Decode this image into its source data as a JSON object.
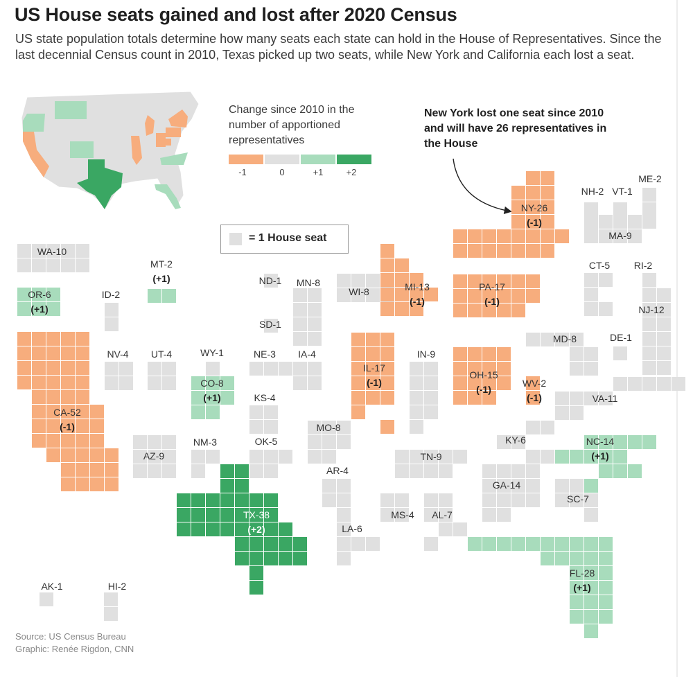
{
  "title": "US House seats gained and lost after 2020 Census",
  "subtitle": "US state population totals determine how many seats each state can hold in the House of Representatives. Since the last decennial Census count in 2010, Texas picked up two seats, while New York and California each lost a seat.",
  "legend": {
    "title": "Change since 2010 in the number of apportioned representatives",
    "items": [
      {
        "label": "-1",
        "color": "#f7ad7d"
      },
      {
        "label": "0",
        "color": "#e0e0e0"
      },
      {
        "label": "+1",
        "color": "#a8dcbc"
      },
      {
        "label": "+2",
        "color": "#3aa763"
      }
    ]
  },
  "key": {
    "label": "= 1 House seat",
    "swatch_color": "#e0e0e0"
  },
  "callout": {
    "text": "New York lost one seat since 2010 and will have 26 representatives in the House"
  },
  "source": {
    "line1": "Source: US Census Bureau",
    "line2": "Graphic: Renée Rigdon, CNN"
  },
  "chart_data": {
    "type": "table",
    "unit": "1 House seat",
    "states": [
      {
        "code": "WA",
        "seats": 10,
        "change": 0
      },
      {
        "code": "OR",
        "seats": 6,
        "change": 1
      },
      {
        "code": "CA",
        "seats": 52,
        "change": -1
      },
      {
        "code": "ID",
        "seats": 2,
        "change": 0
      },
      {
        "code": "NV",
        "seats": 4,
        "change": 0
      },
      {
        "code": "MT",
        "seats": 2,
        "change": 1
      },
      {
        "code": "UT",
        "seats": 4,
        "change": 0
      },
      {
        "code": "AZ",
        "seats": 9,
        "change": 0
      },
      {
        "code": "WY",
        "seats": 1,
        "change": 0
      },
      {
        "code": "CO",
        "seats": 8,
        "change": 1
      },
      {
        "code": "NM",
        "seats": 3,
        "change": 0
      },
      {
        "code": "ND",
        "seats": 1,
        "change": 0
      },
      {
        "code": "SD",
        "seats": 1,
        "change": 0
      },
      {
        "code": "NE",
        "seats": 3,
        "change": 0
      },
      {
        "code": "KS",
        "seats": 4,
        "change": 0
      },
      {
        "code": "OK",
        "seats": 5,
        "change": 0
      },
      {
        "code": "TX",
        "seats": 38,
        "change": 2
      },
      {
        "code": "MN",
        "seats": 8,
        "change": 0
      },
      {
        "code": "IA",
        "seats": 4,
        "change": 0
      },
      {
        "code": "MO",
        "seats": 8,
        "change": 0
      },
      {
        "code": "AR",
        "seats": 4,
        "change": 0
      },
      {
        "code": "LA",
        "seats": 6,
        "change": 0
      },
      {
        "code": "WI",
        "seats": 8,
        "change": 0
      },
      {
        "code": "IL",
        "seats": 17,
        "change": -1
      },
      {
        "code": "MI",
        "seats": 13,
        "change": -1
      },
      {
        "code": "IN",
        "seats": 9,
        "change": 0
      },
      {
        "code": "OH",
        "seats": 15,
        "change": -1
      },
      {
        "code": "KY",
        "seats": 6,
        "change": 0
      },
      {
        "code": "TN",
        "seats": 9,
        "change": 0
      },
      {
        "code": "MS",
        "seats": 4,
        "change": 0
      },
      {
        "code": "AL",
        "seats": 7,
        "change": 0
      },
      {
        "code": "GA",
        "seats": 14,
        "change": 0
      },
      {
        "code": "FL",
        "seats": 28,
        "change": 1
      },
      {
        "code": "SC",
        "seats": 7,
        "change": 0
      },
      {
        "code": "NC",
        "seats": 14,
        "change": 1
      },
      {
        "code": "VA",
        "seats": 11,
        "change": 0
      },
      {
        "code": "WV",
        "seats": 2,
        "change": -1
      },
      {
        "code": "PA",
        "seats": 17,
        "change": -1
      },
      {
        "code": "NY",
        "seats": 26,
        "change": -1
      },
      {
        "code": "MD",
        "seats": 8,
        "change": 0
      },
      {
        "code": "DE",
        "seats": 1,
        "change": 0
      },
      {
        "code": "NJ",
        "seats": 12,
        "change": 0
      },
      {
        "code": "CT",
        "seats": 5,
        "change": 0
      },
      {
        "code": "RI",
        "seats": 2,
        "change": 0
      },
      {
        "code": "MA",
        "seats": 9,
        "change": 0
      },
      {
        "code": "VT",
        "seats": 1,
        "change": 0
      },
      {
        "code": "NH",
        "seats": 2,
        "change": 0
      },
      {
        "code": "ME",
        "seats": 2,
        "change": 0
      },
      {
        "code": "AK",
        "seats": 1,
        "change": 0
      },
      {
        "code": "HI",
        "seats": 2,
        "change": 0
      }
    ]
  }
}
